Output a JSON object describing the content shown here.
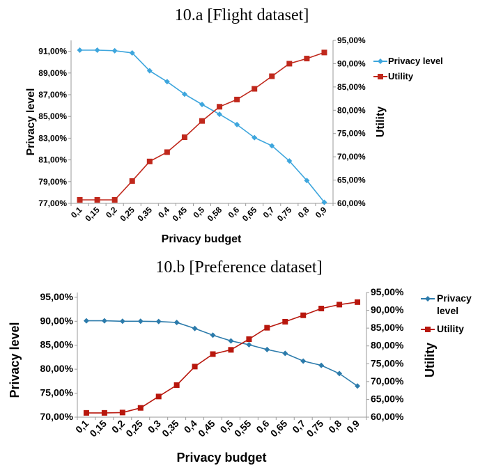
{
  "chart_data": [
    {
      "type": "line",
      "title": "10.a [Flight dataset]",
      "xlabel": "Privacy budget",
      "ylabel": "Privacy level",
      "y2label": "Utility",
      "categories": [
        "0,1",
        "0,15",
        "0,2",
        "0,25",
        "0,35",
        "0,4",
        "0,45",
        "0,5",
        "0,58",
        "0,6",
        "0,65",
        "0,7",
        "0,75",
        "0,8",
        "0,9"
      ],
      "ylim": [
        77,
        92
      ],
      "y_ticks": [
        "77,00%",
        "79,00%",
        "81,00%",
        "83,00%",
        "85,00%",
        "87,00%",
        "89,00%",
        "91,00%"
      ],
      "y2lim": [
        60,
        95
      ],
      "y2_ticks": [
        "60,00%",
        "65,00%",
        "70,00%",
        "75,00%",
        "80,00%",
        "85,00%",
        "90,00%",
        "95,00%"
      ],
      "grid": false,
      "legend_position": "top-right",
      "series": [
        {
          "name": "Privacy level",
          "axis": "left",
          "color": "#3ea6dd",
          "marker": "diamond",
          "values": [
            91.1,
            91.1,
            91.05,
            90.85,
            89.2,
            88.2,
            87.05,
            86.1,
            85.2,
            84.25,
            83.05,
            82.3,
            80.9,
            79.1,
            77.1
          ]
        },
        {
          "name": "Utility",
          "axis": "right",
          "color": "#c0281c",
          "marker": "square",
          "values": [
            60.75,
            60.75,
            60.75,
            64.8,
            69,
            71,
            74.2,
            77.7,
            80.75,
            82.3,
            84.6,
            87.3,
            90,
            91.1,
            92.4
          ]
        }
      ]
    },
    {
      "type": "line",
      "title": "10.b [Preference dataset]",
      "xlabel": "Privacy budget",
      "ylabel": "Privacy level",
      "y2label": "Utility",
      "categories": [
        "0,1",
        "0,15",
        "0,2",
        "0,25",
        "0,3",
        "0,35",
        "0,4",
        "0,45",
        "0,5",
        "0,55",
        "0,6",
        "0,65",
        "0,7",
        "0,75",
        "0,8",
        "0,9"
      ],
      "ylim": [
        70,
        96
      ],
      "y_ticks": [
        "70,00%",
        "75,00%",
        "80,00%",
        "85,00%",
        "90,00%",
        "95,00%"
      ],
      "y2lim": [
        60,
        95
      ],
      "y2_ticks": [
        "60,00%",
        "65,00%",
        "70,00%",
        "75,00%",
        "80,00%",
        "85,00%",
        "90,00%",
        "95,00%"
      ],
      "grid": false,
      "legend_position": "top-right",
      "series": [
        {
          "name": "Privacy level",
          "axis": "left",
          "color": "#2c7bab",
          "marker": "diamond",
          "values": [
            90.1,
            90.1,
            90.0,
            90.0,
            89.95,
            89.75,
            88.5,
            87.1,
            85.9,
            85.1,
            84.1,
            83.3,
            81.7,
            80.8,
            79.1,
            76.5
          ]
        },
        {
          "name": "Utility",
          "axis": "right",
          "color": "#b8170d",
          "marker": "square",
          "values": [
            61.2,
            61.2,
            61.3,
            62.6,
            65.8,
            69,
            74.2,
            77.7,
            78.9,
            81.9,
            85.1,
            86.8,
            88.6,
            90.5,
            91.6,
            92.3
          ]
        }
      ]
    }
  ]
}
